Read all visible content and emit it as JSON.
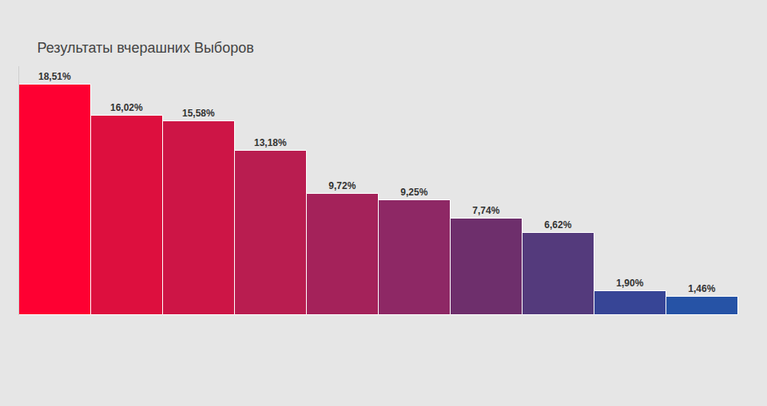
{
  "chart_data": {
    "type": "bar",
    "title": "Результаты вчерашних Выборов",
    "categories": [
      null,
      null,
      null,
      null,
      null,
      null,
      null,
      null,
      null,
      null
    ],
    "values": [
      18.51,
      16.02,
      15.58,
      13.18,
      9.72,
      9.25,
      7.74,
      6.62,
      1.9,
      1.46
    ],
    "value_labels": [
      "18,51%",
      "16,02%",
      "15,58%",
      "13,18%",
      "9,72%",
      "9,25%",
      "7,74%",
      "6,62%",
      "1,90%",
      "1,46%"
    ],
    "colors": [
      "#fe0032",
      "#dd0f3e",
      "#cd1546",
      "#b91d50",
      "#a4225a",
      "#8e2865",
      "#6e2f6c",
      "#543a7c",
      "#374596",
      "#2653a6"
    ],
    "ylim": [
      0,
      20
    ],
    "yticks": [],
    "grid": false,
    "data_labels": true,
    "tick_labels": false
  }
}
